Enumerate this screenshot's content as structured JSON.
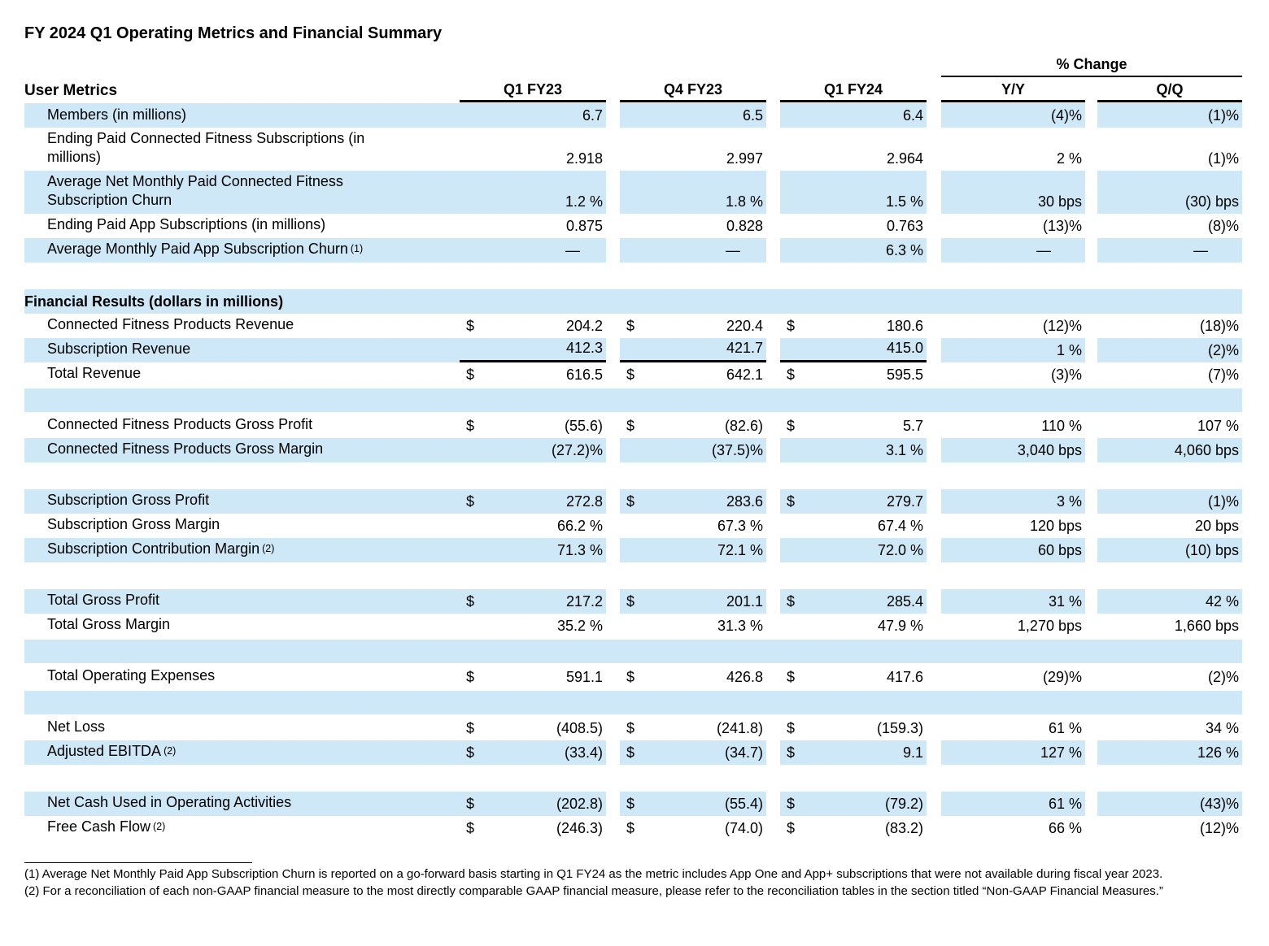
{
  "page": {
    "title": "FY 2024 Q1 Operating Metrics and Financial Summary"
  },
  "currency_symbol": "$",
  "colors": {
    "row_stripe": "#cfe8f7",
    "text": "#000000",
    "rule": "#000000"
  },
  "header": {
    "pct_change_label": "% Change",
    "columns": [
      "Q1 FY23",
      "Q4 FY23",
      "Q1 FY24"
    ],
    "change_columns": [
      "Y/Y",
      "Q/Q"
    ]
  },
  "user_metrics": {
    "section_label": "User Metrics",
    "rows": [
      {
        "label": "Members (in millions)",
        "values": [
          "6.7",
          "6.5",
          "6.4"
        ],
        "yy": "(4)%",
        "qq": "(1)%",
        "blue": true
      },
      {
        "label": "Ending Paid Connected Fitness Subscriptions (in\nmillions)",
        "values": [
          "2.918",
          "2.997",
          "2.964"
        ],
        "yy": "2 %",
        "qq": "(1)%",
        "blue": false
      },
      {
        "label": "Average Net Monthly Paid Connected Fitness\nSubscription Churn",
        "values": [
          "1.2 %",
          "1.8 %",
          "1.5 %"
        ],
        "yy": "30 bps",
        "qq": "(30) bps",
        "blue": true
      },
      {
        "label": "Ending Paid App Subscriptions (in millions)",
        "values": [
          "0.875",
          "0.828",
          "0.763"
        ],
        "yy": "(13)%",
        "qq": "(8)%",
        "blue": false
      },
      {
        "label": "Average Monthly Paid App Subscription Churn",
        "footnote": "(1)",
        "values": [
          "—",
          "—",
          "6.3 %"
        ],
        "yy": "—",
        "qq": "—",
        "blue": true
      }
    ]
  },
  "financial_results": {
    "section_label": "Financial Results (dollars in millions)",
    "rows": [
      {
        "label": "Connected Fitness Products Revenue",
        "dollar": true,
        "values": [
          "204.2",
          "220.4",
          "180.6"
        ],
        "yy": "(12)%",
        "qq": "(18)%",
        "blue": false
      },
      {
        "label": "Subscription Revenue",
        "values": [
          "412.3",
          "421.7",
          "415.0"
        ],
        "yy": "1 %",
        "qq": "(2)%",
        "blue": true,
        "sum_rule": true
      },
      {
        "label": "Total Revenue",
        "dollar": true,
        "values": [
          "616.5",
          "642.1",
          "595.5"
        ],
        "yy": "(3)%",
        "qq": "(7)%",
        "blue": false
      },
      {
        "spacer": true,
        "blue": true
      },
      {
        "label": "Connected Fitness Products Gross Profit",
        "dollar": true,
        "values": [
          "(55.6)",
          "(82.6)",
          "5.7"
        ],
        "yy": "110 %",
        "qq": "107 %",
        "blue": false
      },
      {
        "label": "Connected Fitness Products Gross Margin",
        "values": [
          "(27.2)%",
          "(37.5)%",
          "3.1 %"
        ],
        "yy": "3,040 bps",
        "qq": "4,060 bps",
        "blue": true
      },
      {
        "spacer": true,
        "blue": false
      },
      {
        "label": "Subscription Gross Profit",
        "dollar": true,
        "values": [
          "272.8",
          "283.6",
          "279.7"
        ],
        "yy": "3 %",
        "qq": "(1)%",
        "blue": true
      },
      {
        "label": "Subscription Gross Margin",
        "values": [
          "66.2 %",
          "67.3 %",
          "67.4 %"
        ],
        "yy": "120 bps",
        "qq": "20 bps",
        "blue": false
      },
      {
        "label": "Subscription Contribution Margin",
        "footnote": "(2)",
        "values": [
          "71.3 %",
          "72.1 %",
          "72.0 %"
        ],
        "yy": "60 bps",
        "qq": "(10) bps",
        "blue": true
      },
      {
        "spacer": true,
        "blue": false
      },
      {
        "label": "Total Gross Profit",
        "dollar": true,
        "values": [
          "217.2",
          "201.1",
          "285.4"
        ],
        "yy": "31 %",
        "qq": "42 %",
        "blue": true
      },
      {
        "label": "Total Gross Margin",
        "values": [
          "35.2 %",
          "31.3 %",
          "47.9 %"
        ],
        "yy": "1,270 bps",
        "qq": "1,660 bps",
        "blue": false
      },
      {
        "spacer": true,
        "blue": true
      },
      {
        "label": "Total Operating Expenses",
        "dollar": true,
        "values": [
          "591.1",
          "426.8",
          "417.6"
        ],
        "yy": "(29)%",
        "qq": "(2)%",
        "blue": false
      },
      {
        "spacer": true,
        "blue": true
      },
      {
        "label": "Net Loss",
        "dollar": true,
        "values": [
          "(408.5)",
          "(241.8)",
          "(159.3)"
        ],
        "yy": "61 %",
        "qq": "34 %",
        "blue": false
      },
      {
        "label": "Adjusted EBITDA",
        "footnote": "(2)",
        "dollar": true,
        "values": [
          "(33.4)",
          "(34.7)",
          "9.1"
        ],
        "yy": "127 %",
        "qq": "126 %",
        "blue": true
      },
      {
        "spacer": true,
        "blue": false
      },
      {
        "label": "Net Cash Used in Operating Activities",
        "dollar": true,
        "values": [
          "(202.8)",
          "(55.4)",
          "(79.2)"
        ],
        "yy": "61 %",
        "qq": "(43)%",
        "blue": true
      },
      {
        "label": "Free Cash Flow",
        "footnote": "(2)",
        "dollar": true,
        "values": [
          "(246.3)",
          "(74.0)",
          "(83.2)"
        ],
        "yy": "66 %",
        "qq": "(12)%",
        "blue": false
      }
    ]
  },
  "footnotes": {
    "items": [
      "(1) Average Net Monthly Paid App Subscription Churn is reported on a go-forward basis starting in Q1 FY24 as the metric includes App One and App+ subscriptions that were not available during fiscal year 2023.",
      "(2) For a reconciliation of each non-GAAP financial measure to the most directly comparable GAAP financial measure, please refer to the reconciliation tables in the section titled “Non-GAAP Financial Measures.”"
    ]
  }
}
